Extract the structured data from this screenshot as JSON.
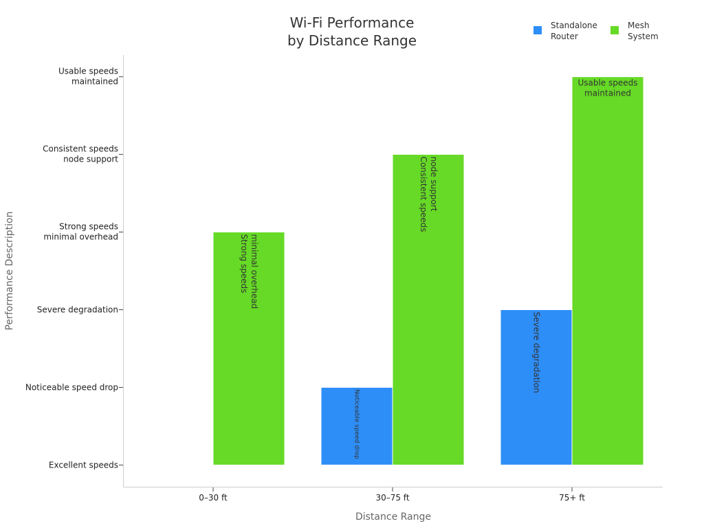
{
  "chart_data": {
    "type": "bar",
    "title_lines": [
      "Wi-Fi Performance",
      "by Distance Range"
    ],
    "xlabel": "Distance Range",
    "ylabel": "Performance Description",
    "categories": [
      "0–30 ft",
      "30–75 ft",
      "75+ ft"
    ],
    "y_levels": [
      [
        "Excellent speeds"
      ],
      [
        "Noticeable speed drop"
      ],
      [
        "Severe degradation"
      ],
      [
        "Strong speeds",
        "minimal overhead"
      ],
      [
        "Consistent speeds",
        "node support"
      ],
      [
        "Usable speeds",
        "maintained"
      ]
    ],
    "ylim": [
      -0.28,
      5.28
    ],
    "series": [
      {
        "name": "Standalone Router",
        "legend_lines": [
          "Standalone",
          "Router"
        ],
        "color": "#2E8EF7",
        "values": [
          0,
          1,
          2
        ],
        "labels": [
          null,
          {
            "lines": [
              "Noticeable speed drop"
            ],
            "orientation": "vertical"
          },
          {
            "lines": [
              "Severe degradation"
            ],
            "orientation": "vertical"
          }
        ]
      },
      {
        "name": "Mesh System",
        "legend_lines": [
          "Mesh",
          "System"
        ],
        "color": "#66DA26",
        "values": [
          3,
          4,
          5
        ],
        "labels": [
          {
            "lines": [
              "Strong speeds",
              "minimal overhead"
            ],
            "orientation": "vertical"
          },
          {
            "lines": [
              "Consistent speeds",
              "node support"
            ],
            "orientation": "vertical"
          },
          {
            "lines": [
              "Usable speeds",
              "maintained"
            ],
            "orientation": "horizontal"
          }
        ]
      }
    ],
    "grid": false,
    "legend_position": "top-right"
  }
}
